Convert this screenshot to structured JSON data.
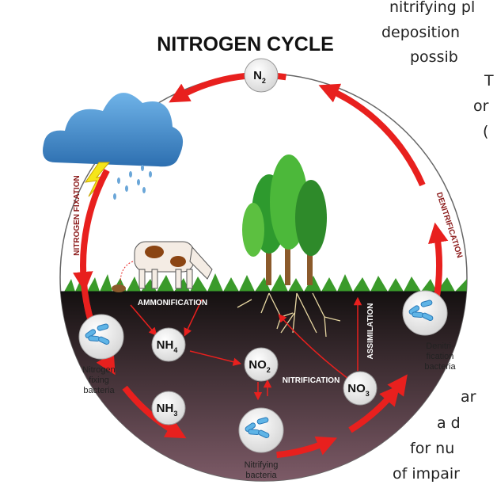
{
  "background_text": [
    "nitrifying pl",
    "deposition",
    "possib",
    "T",
    "or",
    "(",
    "ar",
    "a d",
    "for nu",
    "of impair"
  ],
  "title": "NITROGEN CYCLE",
  "compounds": [
    {
      "main": "N",
      "sub": "2"
    },
    {
      "main": "NH",
      "sub": "4"
    },
    {
      "main": "NO",
      "sub": "2"
    },
    {
      "main": "NH",
      "sub": "3"
    },
    {
      "main": "NO",
      "sub": "3"
    }
  ],
  "processes": [
    "NITROGEN FIXATION",
    "DENITRIFICATION",
    "AMMONIFICATION",
    "NITRIFICATION",
    "ASSIMILATION"
  ],
  "bacteria": [
    {
      "lines": [
        "Nitrogen",
        "fixing",
        "bacteria"
      ]
    },
    {
      "lines": [
        "Nitrifying",
        "bacteria"
      ]
    },
    {
      "lines": [
        "Denitri-",
        "fication",
        "bacteria"
      ]
    }
  ]
}
